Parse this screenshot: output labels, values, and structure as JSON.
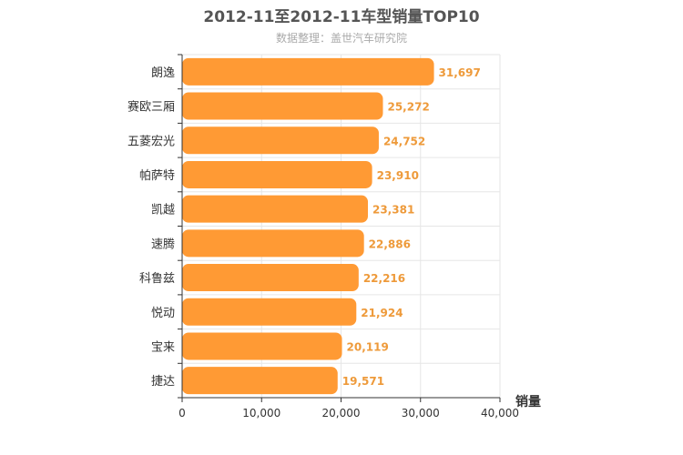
{
  "chart_data": {
    "type": "bar",
    "orientation": "horizontal",
    "title": "2012-11至2012-11车型销量TOP10",
    "subtitle": "数据整理：盖世汽车研究院",
    "xlabel": "销量",
    "ylabel": "",
    "xlim": [
      0,
      40000
    ],
    "x_ticks": [
      0,
      10000,
      20000,
      30000,
      40000
    ],
    "x_tick_labels": [
      "0",
      "10,000",
      "20,000",
      "30,000",
      "40,000"
    ],
    "grid": true,
    "bar_color": "#ff9a34",
    "label_color": "#ee9a3a",
    "categories": [
      "朗逸",
      "赛欧三厢",
      "五菱宏光",
      "帕萨特",
      "凯越",
      "速腾",
      "科鲁兹",
      "悦动",
      "宝来",
      "捷达"
    ],
    "values": [
      31697,
      25272,
      24752,
      23910,
      23381,
      22886,
      22216,
      21924,
      20119,
      19571
    ],
    "value_labels": [
      "31,697",
      "25,272",
      "24,752",
      "23,910",
      "23,381",
      "22,886",
      "22,216",
      "21,924",
      "20,119",
      "19,571"
    ]
  }
}
